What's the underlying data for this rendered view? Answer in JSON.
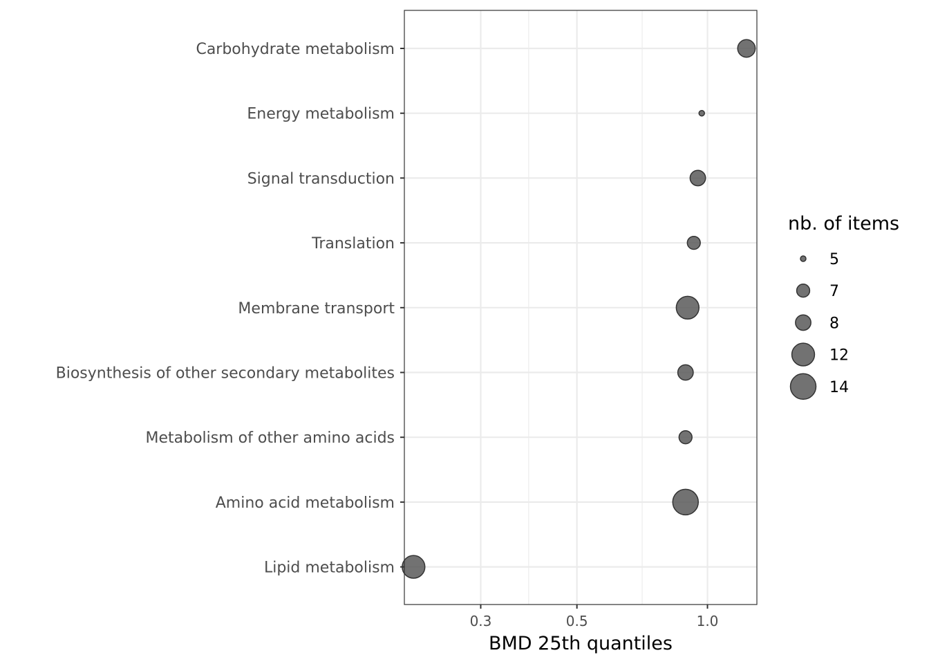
{
  "chart_data": {
    "type": "scatter",
    "xlabel": "BMD 25th quantiles",
    "x_scale": "log10",
    "xlim": [
      0.2,
      1.3
    ],
    "x_ticks": [
      {
        "value": 0.3,
        "label": "0.3"
      },
      {
        "value": 0.5,
        "label": "0.5"
      },
      {
        "value": 1.0,
        "label": "1.0"
      }
    ],
    "x_minor_gridlines": [
      0.387,
      0.707
    ],
    "grid": true,
    "categories": [
      "Carbohydrate metabolism",
      "Energy metabolism",
      "Signal transduction",
      "Translation",
      "Membrane transport",
      "Biosynthesis of other secondary metabolites",
      "Metabolism of other amino acids",
      "Amino acid metabolism",
      "Lipid metabolism"
    ],
    "points": [
      {
        "category": "Carbohydrate metabolism",
        "x": 1.23,
        "size": 9
      },
      {
        "category": "Energy metabolism",
        "x": 0.97,
        "size": 5
      },
      {
        "category": "Signal transduction",
        "x": 0.95,
        "size": 8
      },
      {
        "category": "Translation",
        "x": 0.93,
        "size": 7
      },
      {
        "category": "Membrane transport",
        "x": 0.9,
        "size": 12
      },
      {
        "category": "Biosynthesis of other secondary metabolites",
        "x": 0.89,
        "size": 8
      },
      {
        "category": "Metabolism of other amino acids",
        "x": 0.89,
        "size": 7
      },
      {
        "category": "Amino acid metabolism",
        "x": 0.89,
        "size": 14
      },
      {
        "category": "Lipid metabolism",
        "x": 0.21,
        "size": 12
      }
    ],
    "size_legend": {
      "title": "nb. of items",
      "placement": "right",
      "entries": [
        {
          "label": "5",
          "size": 5
        },
        {
          "label": "7",
          "size": 7
        },
        {
          "label": "8",
          "size": 8
        },
        {
          "label": "12",
          "size": 12
        },
        {
          "label": "14",
          "size": 14
        }
      ]
    },
    "colors": {
      "point_fill": "#595959",
      "point_stroke": "#333333",
      "grid": "#ebebeb",
      "panel_border": "#333333"
    }
  }
}
